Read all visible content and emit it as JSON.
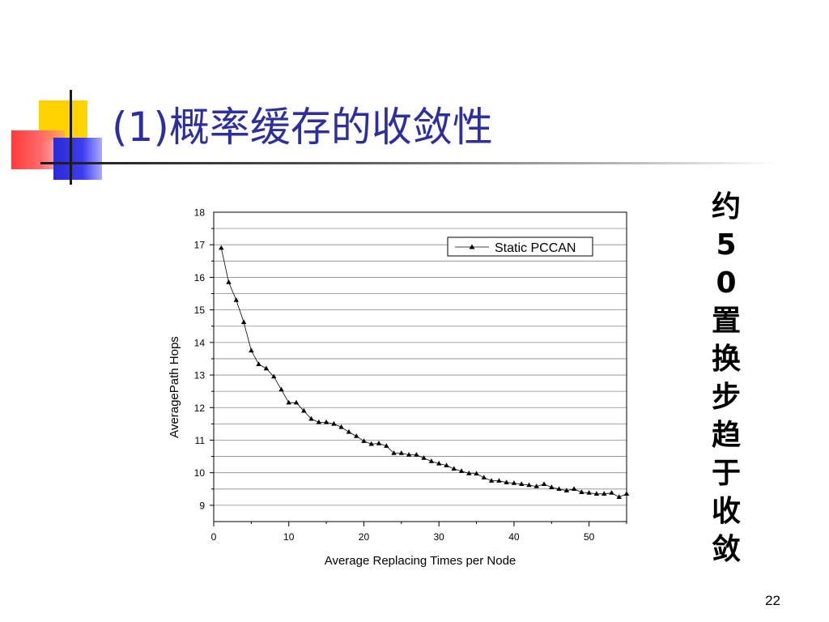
{
  "slide": {
    "title": "(1)概率缓存的收敛性",
    "side_note": "约50置换步趋于收敛",
    "page_number": "22"
  },
  "chart_data": {
    "type": "line",
    "xlabel": "Average Replacing Times per Node",
    "ylabel": "AveragePath Hops",
    "xlim": [
      0,
      55
    ],
    "ylim": [
      8.5,
      18
    ],
    "x_ticks": [
      0,
      10,
      20,
      30,
      40,
      50
    ],
    "y_ticks": [
      9,
      10,
      11,
      12,
      13,
      14,
      15,
      16,
      17,
      18
    ],
    "grid": "horizontal",
    "legend_position": "top-right",
    "series": [
      {
        "name": "Static PCCAN",
        "marker": "triangle",
        "color": "#000000",
        "x": [
          1,
          2,
          3,
          4,
          5,
          6,
          7,
          8,
          9,
          10,
          11,
          12,
          13,
          14,
          15,
          16,
          17,
          18,
          19,
          20,
          21,
          22,
          23,
          24,
          25,
          26,
          27,
          28,
          29,
          30,
          31,
          32,
          33,
          34,
          35,
          36,
          37,
          38,
          39,
          40,
          41,
          42,
          43,
          44,
          45,
          46,
          47,
          48,
          49,
          50,
          51,
          52,
          53,
          54,
          55
        ],
        "y": [
          16.9,
          15.85,
          15.3,
          14.62,
          13.75,
          13.33,
          13.2,
          12.95,
          12.55,
          12.15,
          12.15,
          11.9,
          11.65,
          11.55,
          11.55,
          11.5,
          11.4,
          11.25,
          11.12,
          10.97,
          10.88,
          10.9,
          10.82,
          10.6,
          10.6,
          10.55,
          10.55,
          10.45,
          10.35,
          10.28,
          10.22,
          10.12,
          10.05,
          9.98,
          9.97,
          9.85,
          9.75,
          9.75,
          9.7,
          9.68,
          9.65,
          9.62,
          9.58,
          9.65,
          9.55,
          9.5,
          9.45,
          9.5,
          9.4,
          9.38,
          9.35,
          9.35,
          9.38,
          9.25,
          9.35
        ]
      }
    ]
  }
}
